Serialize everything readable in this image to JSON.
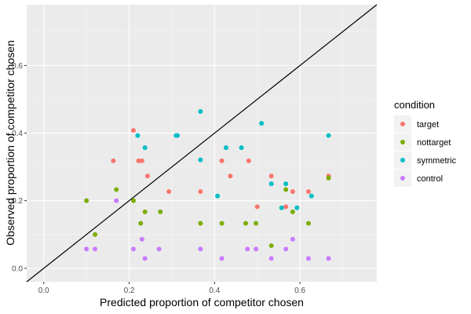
{
  "chart_data": {
    "type": "scatter",
    "title": "",
    "xlabel": "Predicted proportion of competitor chosen",
    "ylabel": "Observed proportion of competitor chosen",
    "xlim": [
      -0.04,
      0.78
    ],
    "ylim": [
      -0.04,
      0.78
    ],
    "x_ticks": [
      0.0,
      0.2,
      0.4,
      0.6
    ],
    "y_ticks": [
      0.0,
      0.2,
      0.4,
      0.6
    ],
    "x_tick_labels": [
      "0.0",
      "0.2",
      "0.4",
      "0.6"
    ],
    "y_tick_labels": [
      "0.0",
      "0.2",
      "0.4",
      "0.6"
    ],
    "grid": true,
    "reference_line": "y = x",
    "legend": {
      "title": "condition",
      "position": "right"
    },
    "series": [
      {
        "name": "target",
        "color": "#F8766D",
        "points": [
          [
            0.163,
            0.318
          ],
          [
            0.21,
            0.408
          ],
          [
            0.222,
            0.318
          ],
          [
            0.23,
            0.318
          ],
          [
            0.243,
            0.273
          ],
          [
            0.293,
            0.227
          ],
          [
            0.367,
            0.227
          ],
          [
            0.417,
            0.318
          ],
          [
            0.437,
            0.273
          ],
          [
            0.48,
            0.318
          ],
          [
            0.5,
            0.182
          ],
          [
            0.533,
            0.273
          ],
          [
            0.567,
            0.182
          ],
          [
            0.583,
            0.227
          ],
          [
            0.62,
            0.227
          ],
          [
            0.667,
            0.273
          ]
        ]
      },
      {
        "name": "nottarget",
        "color": "#7CAE00",
        "points": [
          [
            0.1,
            0.2
          ],
          [
            0.12,
            0.1
          ],
          [
            0.17,
            0.233
          ],
          [
            0.21,
            0.2
          ],
          [
            0.227,
            0.133
          ],
          [
            0.237,
            0.167
          ],
          [
            0.273,
            0.167
          ],
          [
            0.367,
            0.133
          ],
          [
            0.417,
            0.133
          ],
          [
            0.473,
            0.133
          ],
          [
            0.497,
            0.133
          ],
          [
            0.533,
            0.067
          ],
          [
            0.567,
            0.233
          ],
          [
            0.583,
            0.167
          ],
          [
            0.62,
            0.133
          ],
          [
            0.667,
            0.267
          ]
        ]
      },
      {
        "name": "symmetric",
        "color": "#00BFC4",
        "points": [
          [
            0.22,
            0.393
          ],
          [
            0.237,
            0.357
          ],
          [
            0.31,
            0.393
          ],
          [
            0.313,
            0.393
          ],
          [
            0.367,
            0.464
          ],
          [
            0.367,
            0.321
          ],
          [
            0.407,
            0.214
          ],
          [
            0.427,
            0.357
          ],
          [
            0.463,
            0.357
          ],
          [
            0.51,
            0.429
          ],
          [
            0.533,
            0.25
          ],
          [
            0.557,
            0.179
          ],
          [
            0.567,
            0.25
          ],
          [
            0.593,
            0.179
          ],
          [
            0.627,
            0.214
          ],
          [
            0.667,
            0.393
          ]
        ]
      },
      {
        "name": "control",
        "color": "#C77CFF",
        "points": [
          [
            0.1,
            0.057
          ],
          [
            0.12,
            0.057
          ],
          [
            0.17,
            0.2
          ],
          [
            0.21,
            0.057
          ],
          [
            0.23,
            0.086
          ],
          [
            0.237,
            0.029
          ],
          [
            0.27,
            0.057
          ],
          [
            0.367,
            0.057
          ],
          [
            0.417,
            0.029
          ],
          [
            0.477,
            0.057
          ],
          [
            0.497,
            0.057
          ],
          [
            0.533,
            0.029
          ],
          [
            0.567,
            0.057
          ],
          [
            0.583,
            0.086
          ],
          [
            0.62,
            0.029
          ],
          [
            0.667,
            0.029
          ]
        ]
      }
    ]
  }
}
